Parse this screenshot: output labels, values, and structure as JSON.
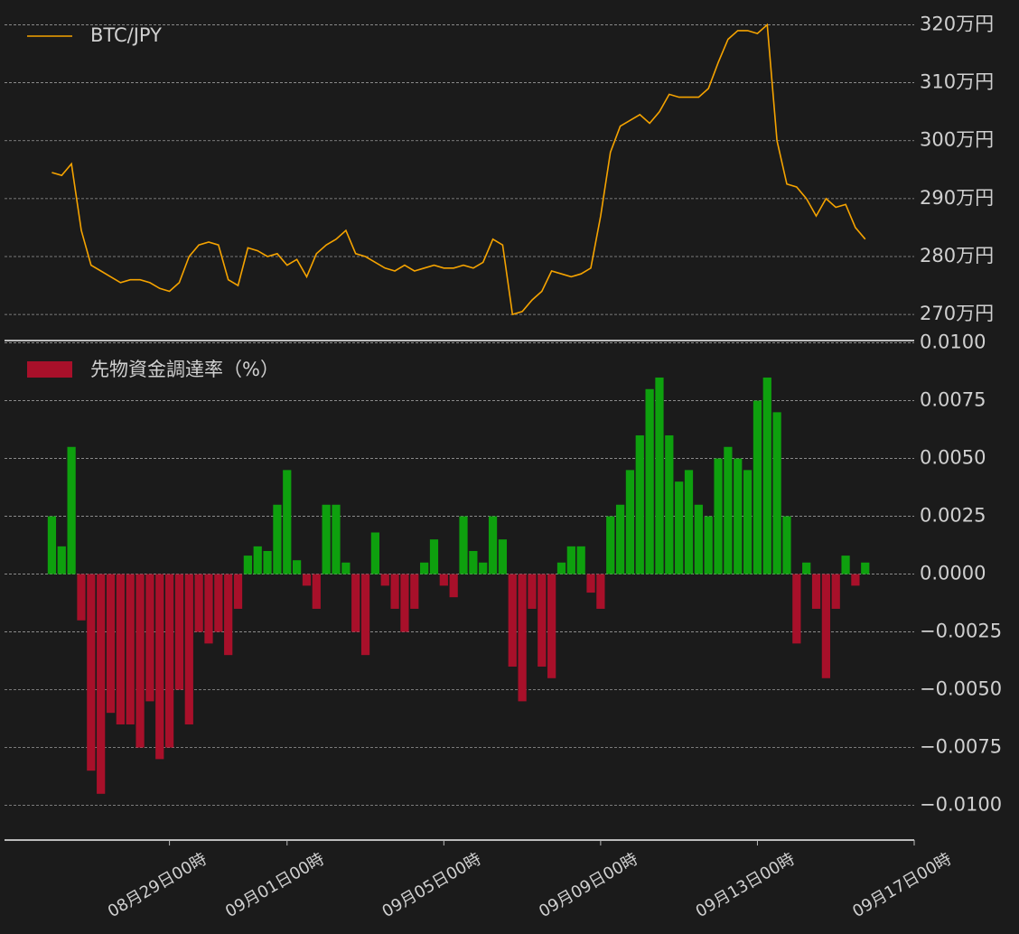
{
  "chart_data": [
    {
      "type": "line",
      "x": [
        "08月26日00時",
        "08月26日06時",
        "08月26日12時",
        "08月26日18時",
        "08月27日00時",
        "08月27日06時",
        "08月27日12時",
        "08月27日18時",
        "08月28日00時",
        "08月28日06時",
        "08月28日12時",
        "08月28日18時",
        "08月29日00時",
        "08月29日06時",
        "08月29日12時",
        "08月29日18時",
        "08月30日00時",
        "08月30日06時",
        "08月30日12時",
        "08月30日18時",
        "08月31日00時",
        "08月31日06時",
        "08月31日12時",
        "08月31日18時",
        "09月01日00時",
        "09月01日06時",
        "09月01日12時",
        "09月01日18時",
        "09月02日00時",
        "09月02日06時",
        "09月02日12時",
        "09月02日18時",
        "09月03日00時",
        "09月03日06時",
        "09月03日12時",
        "09月03日18時",
        "09月04日00時",
        "09月04日06時",
        "09月04日12時",
        "09月04日18時",
        "09月05日00時",
        "09月05日06時",
        "09月05日12時",
        "09月05日18時",
        "09月06日00時",
        "09月06日06時",
        "09月06日12時",
        "09月06日18時",
        "09月07日00時",
        "09月07日06時",
        "09月07日12時",
        "09月07日18時",
        "09月08日00時",
        "09月08日06時",
        "09月08日12時",
        "09月08日18時",
        "09月09日00時",
        "09月09日06時",
        "09月09日12時",
        "09月09日18時",
        "09月10日00時",
        "09月10日06時",
        "09月10日12時",
        "09月10日18時",
        "09月11日00時",
        "09月11日06時",
        "09月11日12時",
        "09月11日18時",
        "09月12日00時",
        "09月12日06時",
        "09月12日12時",
        "09月12日18時",
        "09月13日00時",
        "09月13日06時",
        "09月13日12時",
        "09月13日18時",
        "09月14日00時",
        "09月14日06時",
        "09月14日12時",
        "09月14日18時",
        "09月15日00時",
        "09月15日06時",
        "09月15日12時",
        "09月15日18時"
      ],
      "series": [
        {
          "name": "BTC/JPY",
          "color": "#f5a300",
          "values": [
            294.5,
            294,
            296,
            284.5,
            278.5,
            277.5,
            276.5,
            275.5,
            276,
            276,
            275.5,
            274.5,
            274,
            275.5,
            280,
            282,
            282.5,
            282,
            276,
            275,
            281.5,
            281,
            280,
            280.5,
            278.5,
            279.5,
            276.5,
            280.5,
            282,
            283,
            284.5,
            280.5,
            280,
            279,
            278,
            277.5,
            278.5,
            277.5,
            278,
            278.5,
            278,
            278,
            278.5,
            278,
            279,
            283,
            282,
            270,
            270.5,
            272.5,
            274,
            277.5,
            277,
            276.5,
            277,
            278,
            287,
            298,
            302.5,
            303.5,
            304.5,
            303,
            305,
            308,
            307.5,
            307.5,
            307.5,
            309,
            313.5,
            317.5,
            319,
            319,
            318.5,
            320,
            300,
            292.5,
            292,
            290,
            287,
            290,
            288.5,
            289,
            285,
            283
          ]
        }
      ],
      "xlim": [
        "08月24日19時",
        "09月17日00時"
      ],
      "ylim": [
        265.5,
        323.5
      ],
      "yticks": [
        {
          "value": 270,
          "label": "270万円"
        },
        {
          "value": 280,
          "label": "280万円"
        },
        {
          "value": 290,
          "label": "290万円"
        },
        {
          "value": 300,
          "label": "300万円"
        },
        {
          "value": 310,
          "label": "310万円"
        },
        {
          "value": 320,
          "label": "320万円"
        }
      ],
      "grid": true,
      "legend": "upper left"
    },
    {
      "type": "bar",
      "x": [
        "08月26日00時",
        "08月26日06時",
        "08月26日12時",
        "08月26日18時",
        "08月27日00時",
        "08月27日06時",
        "08月27日12時",
        "08月27日18時",
        "08月28日00時",
        "08月28日06時",
        "08月28日12時",
        "08月28日18時",
        "08月29日00時",
        "08月29日06時",
        "08月29日12時",
        "08月29日18時",
        "08月30日00時",
        "08月30日06時",
        "08月30日12時",
        "08月30日18時",
        "08月31日00時",
        "08月31日06時",
        "08月31日12時",
        "08月31日18時",
        "09月01日00時",
        "09月01日06時",
        "09月01日12時",
        "09月01日18時",
        "09月02日00時",
        "09月02日06時",
        "09月02日12時",
        "09月02日18時",
        "09月03日00時",
        "09月03日06時",
        "09月03日12時",
        "09月03日18時",
        "09月04日00時",
        "09月04日06時",
        "09月04日12時",
        "09月04日18時",
        "09月05日00時",
        "09月05日06時",
        "09月05日12時",
        "09月05日18時",
        "09月06日00時",
        "09月06日06時",
        "09月06日12時",
        "09月06日18時",
        "09月07日00時",
        "09月07日06時",
        "09月07日12時",
        "09月07日18時",
        "09月08日00時",
        "09月08日06時",
        "09月08日12時",
        "09月08日18時",
        "09月09日00時",
        "09月09日06時",
        "09月09日12時",
        "09月09日18時",
        "09月10日00時",
        "09月10日06時",
        "09月10日12時",
        "09月10日18時",
        "09月11日00時",
        "09月11日06時",
        "09月11日12時",
        "09月11日18時",
        "09月12日00時",
        "09月12日06時",
        "09月12日12時",
        "09月12日18時",
        "09月13日00時",
        "09月13日06時",
        "09月13日12時",
        "09月13日18時",
        "09月14日00時",
        "09月14日06時",
        "09月14日12時",
        "09月14日18時",
        "09月15日00時",
        "09月15日06時",
        "09月15日12時",
        "09月15日18時"
      ],
      "series": [
        {
          "name": "先物資金調達率（%）",
          "color": "#a8102a",
          "positive_color": "#0ea00e",
          "values": [
            0.0025,
            0.0012,
            0.0055,
            -0.002,
            -0.0085,
            -0.0095,
            -0.006,
            -0.0065,
            -0.0065,
            -0.0075,
            -0.0055,
            -0.008,
            -0.0075,
            -0.005,
            -0.0065,
            -0.0025,
            -0.003,
            -0.0025,
            -0.0035,
            -0.0015,
            0.0008,
            0.0012,
            0.001,
            0.003,
            0.0045,
            0.0006,
            -0.0005,
            -0.0015,
            0.003,
            0.003,
            0.0005,
            -0.0025,
            -0.0035,
            0.0018,
            -0.0005,
            -0.0015,
            -0.0025,
            -0.0015,
            0.0005,
            0.0015,
            -0.0005,
            -0.001,
            0.0025,
            0.001,
            0.0005,
            0.0025,
            0.0015,
            -0.004,
            -0.0055,
            -0.0015,
            -0.004,
            -0.0045,
            0.0005,
            0.0012,
            0.0012,
            -0.0008,
            -0.0015,
            0.0025,
            0.003,
            0.0045,
            0.006,
            0.008,
            0.0085,
            0.006,
            0.004,
            0.0045,
            0.003,
            0.0025,
            0.005,
            0.0055,
            0.005,
            0.0045,
            0.0075,
            0.0085,
            0.007,
            0.0025,
            -0.003,
            0.0005,
            -0.0015,
            -0.0045,
            -0.0015,
            0.0008,
            -0.0005,
            0.0005
          ]
        }
      ],
      "xlim": [
        "08月24日19時",
        "09月17日00時"
      ],
      "xticks": [
        "08月29日00時",
        "09月01日00時",
        "09月05日00時",
        "09月09日00時",
        "09月13日00時",
        "09月17日00時"
      ],
      "ylim": [
        -0.0115,
        0.0101
      ],
      "yticks": [
        {
          "value": -0.01,
          "label": "−0.0100"
        },
        {
          "value": -0.0075,
          "label": "−0.0075"
        },
        {
          "value": -0.005,
          "label": "−0.0050"
        },
        {
          "value": -0.0025,
          "label": "−0.0025"
        },
        {
          "value": 0,
          "label": "0.0000"
        },
        {
          "value": 0.0025,
          "label": "0.0025"
        },
        {
          "value": 0.005,
          "label": "0.0050"
        },
        {
          "value": 0.0075,
          "label": "0.0075"
        },
        {
          "value": 0.01,
          "label": "0.0100"
        }
      ],
      "grid": true,
      "legend": "upper left"
    }
  ]
}
